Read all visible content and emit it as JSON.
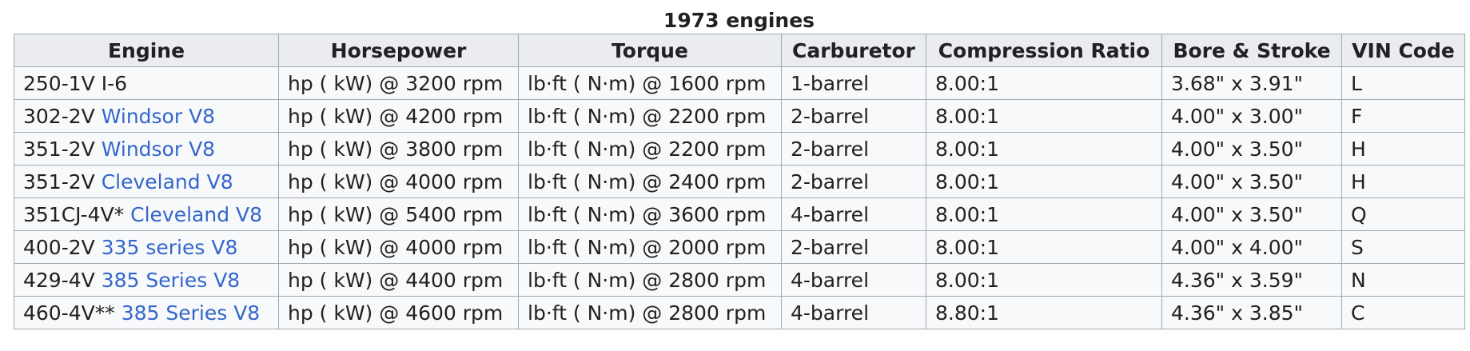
{
  "table": {
    "caption": "1973 engines",
    "headers": [
      "Engine",
      "Horsepower",
      "Torque",
      "Carburetor",
      "Compression Ratio",
      "Bore & Stroke",
      "VIN Code"
    ],
    "rows": [
      {
        "engine_prefix": "250-1V I-6",
        "engine_link": "",
        "horsepower": "hp ( kW) @ 3200 rpm",
        "torque": "lb·ft ( N·m) @ 1600 rpm",
        "carburetor": "1-barrel",
        "compression": "8.00:1",
        "bore_stroke": "3.68\" x 3.91\"",
        "vin": "L"
      },
      {
        "engine_prefix": "302-2V ",
        "engine_link": "Windsor V8",
        "horsepower": "hp ( kW) @ 4200 rpm",
        "torque": "lb·ft ( N·m) @ 2200 rpm",
        "carburetor": "2-barrel",
        "compression": "8.00:1",
        "bore_stroke": "4.00\" x 3.00\"",
        "vin": "F"
      },
      {
        "engine_prefix": "351-2V ",
        "engine_link": "Windsor V8",
        "horsepower": "hp ( kW) @ 3800 rpm",
        "torque": "lb·ft ( N·m) @ 2200 rpm",
        "carburetor": "2-barrel",
        "compression": "8.00:1",
        "bore_stroke": "4.00\" x 3.50\"",
        "vin": "H"
      },
      {
        "engine_prefix": "351-2V ",
        "engine_link": "Cleveland V8",
        "horsepower": "hp ( kW) @ 4000 rpm",
        "torque": "lb·ft ( N·m) @ 2400 rpm",
        "carburetor": "2-barrel",
        "compression": "8.00:1",
        "bore_stroke": "4.00\" x 3.50\"",
        "vin": "H"
      },
      {
        "engine_prefix": "351CJ-4V* ",
        "engine_link": "Cleveland V8",
        "horsepower": "hp ( kW) @ 5400 rpm",
        "torque": "lb·ft ( N·m) @ 3600 rpm",
        "carburetor": "4-barrel",
        "compression": "8.00:1",
        "bore_stroke": "4.00\" x 3.50\"",
        "vin": "Q"
      },
      {
        "engine_prefix": "400-2V ",
        "engine_link": "335 series V8",
        "horsepower": "hp ( kW) @ 4000 rpm",
        "torque": "lb·ft ( N·m) @ 2000 rpm",
        "carburetor": "2-barrel",
        "compression": "8.00:1",
        "bore_stroke": "4.00\" x 4.00\"",
        "vin": "S"
      },
      {
        "engine_prefix": "429-4V ",
        "engine_link": "385 Series V8",
        "horsepower": "hp ( kW) @ 4400 rpm",
        "torque": "lb·ft ( N·m) @ 2800 rpm",
        "carburetor": "4-barrel",
        "compression": "8.00:1",
        "bore_stroke": "4.36\" x 3.59\"",
        "vin": "N"
      },
      {
        "engine_prefix": "460-4V** ",
        "engine_link": "385 Series V8",
        "horsepower": "hp ( kW) @ 4600 rpm",
        "torque": "lb·ft ( N·m) @ 2800 rpm",
        "carburetor": "4-barrel",
        "compression": "8.80:1",
        "bore_stroke": "4.36\" x 3.85\"",
        "vin": "C"
      }
    ]
  },
  "colors": {
    "link": "#3366cc",
    "header_bg": "#eaecf0",
    "cell_bg": "#f8f9fa",
    "border": "#a2a9b1",
    "text": "#202122"
  }
}
